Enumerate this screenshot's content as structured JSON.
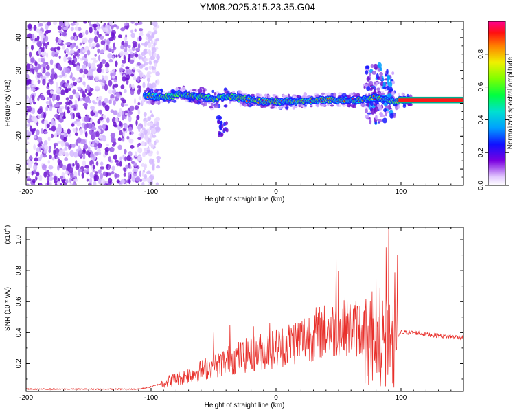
{
  "title": "YM08.2025.315.23.35.G04",
  "chart_data": [
    {
      "type": "heatmap",
      "name": "spectrogram",
      "xlabel": "Height of straight line (km)",
      "ylabel": "Frequency (Hz)",
      "xlim": [
        -200,
        150
      ],
      "ylim": [
        -50,
        50
      ],
      "x_ticks": [
        -200,
        -100,
        0,
        100
      ],
      "x_tick_labels": [
        "-200",
        "-100",
        "0",
        "100"
      ],
      "y_ticks": [
        -40,
        -20,
        0,
        20,
        40
      ],
      "y_tick_labels": [
        "-40",
        "-20",
        "0",
        "20",
        "40"
      ],
      "colorbar": {
        "label": "Normalized spectral amplitude",
        "range": [
          0,
          1
        ],
        "ticks": [
          0.0,
          0.2,
          0.4,
          0.6,
          0.8
        ],
        "tick_labels": [
          "0.0",
          "0.2",
          "0.4",
          "0.6",
          "0.8"
        ]
      },
      "noise_region_x": [
        -200,
        -100
      ],
      "ridge": {
        "x": [
          -105,
          -95,
          -85,
          -78,
          -70,
          -60,
          -50,
          -42,
          -35,
          -28,
          -20,
          -10,
          0,
          10,
          20,
          30,
          40,
          50,
          60,
          68,
          75,
          80,
          85,
          90,
          95,
          100,
          110,
          120,
          130,
          150
        ],
        "freq": [
          5,
          4,
          4,
          6,
          5,
          4,
          3,
          4,
          4,
          3,
          2,
          1,
          1,
          1,
          1,
          2,
          2,
          2,
          2,
          2,
          3,
          4,
          2,
          2,
          1,
          2,
          2,
          2,
          2,
          2
        ]
      }
    },
    {
      "type": "line",
      "name": "snr",
      "xlabel": "Height of straight line (km)",
      "ylabel": "SNR (10 * v/v)",
      "y_scale_label": "(x10",
      "y_scale_exp": "4",
      "xlim": [
        -200,
        150
      ],
      "ylim": [
        0.02,
        1.08
      ],
      "x_ticks": [
        -200,
        -100,
        0,
        100
      ],
      "x_tick_labels": [
        "-200",
        "-100",
        "0",
        "100"
      ],
      "y_ticks": [
        0.2,
        0.4,
        0.6,
        0.8,
        1.0
      ],
      "y_tick_labels": [
        "0.2",
        "0.4",
        "0.6",
        "0.8",
        "1.0"
      ],
      "color": "#e8302b",
      "envelope": {
        "x": [
          -200,
          -150,
          -110,
          -100,
          -92,
          -85,
          -75,
          -65,
          -55,
          -45,
          -35,
          -25,
          -15,
          -5,
          0,
          10,
          20,
          30,
          40,
          50,
          60,
          70,
          75,
          80,
          85,
          90,
          95,
          100,
          110,
          120,
          130,
          140,
          150
        ],
        "y": [
          0.035,
          0.035,
          0.035,
          0.05,
          0.07,
          0.09,
          0.11,
          0.14,
          0.17,
          0.2,
          0.23,
          0.25,
          0.27,
          0.29,
          0.3,
          0.33,
          0.36,
          0.39,
          0.41,
          0.42,
          0.43,
          0.43,
          0.35,
          0.25,
          0.25,
          0.25,
          0.35,
          0.4,
          0.4,
          0.39,
          0.38,
          0.375,
          0.37
        ]
      },
      "spikes": [
        {
          "x": -50,
          "y": 0.4
        },
        {
          "x": -37,
          "y": 0.45
        },
        {
          "x": -18,
          "y": 0.44
        },
        {
          "x": -5,
          "y": 0.46
        },
        {
          "x": 48,
          "y": 0.88
        },
        {
          "x": 50,
          "y": 0.8
        },
        {
          "x": 55,
          "y": 0.63
        },
        {
          "x": 80,
          "y": 0.75
        },
        {
          "x": 83,
          "y": 0.69
        },
        {
          "x": 88,
          "y": 0.95
        },
        {
          "x": 90,
          "y": 1.08
        },
        {
          "x": 95,
          "y": 0.79
        },
        {
          "x": 97,
          "y": 0.9
        }
      ]
    }
  ]
}
